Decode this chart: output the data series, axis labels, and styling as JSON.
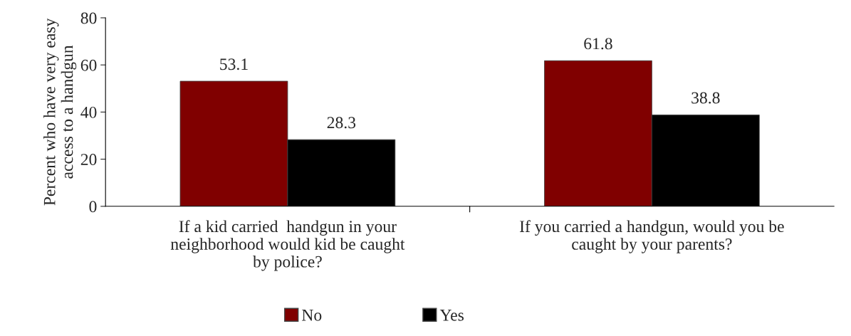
{
  "chart_data": {
    "type": "bar",
    "ylabel": "Percent who have very easy access to a handgun",
    "categories": [
      "If a kid carried  handgun in your\nneighborhood would kid be caught\nby police?",
      "If you carried a handgun, would you be\ncaught by your parents?"
    ],
    "series": [
      {
        "name": "No",
        "color": "#800000",
        "values": [
          53.1,
          61.8
        ]
      },
      {
        "name": "Yes",
        "color": "#000000",
        "values": [
          28.3,
          38.8
        ]
      }
    ],
    "ylim": [
      0,
      80
    ],
    "yticks": [
      0,
      20,
      40,
      60,
      80
    ],
    "data_labels": true,
    "grid": false,
    "legend": "bottom"
  }
}
